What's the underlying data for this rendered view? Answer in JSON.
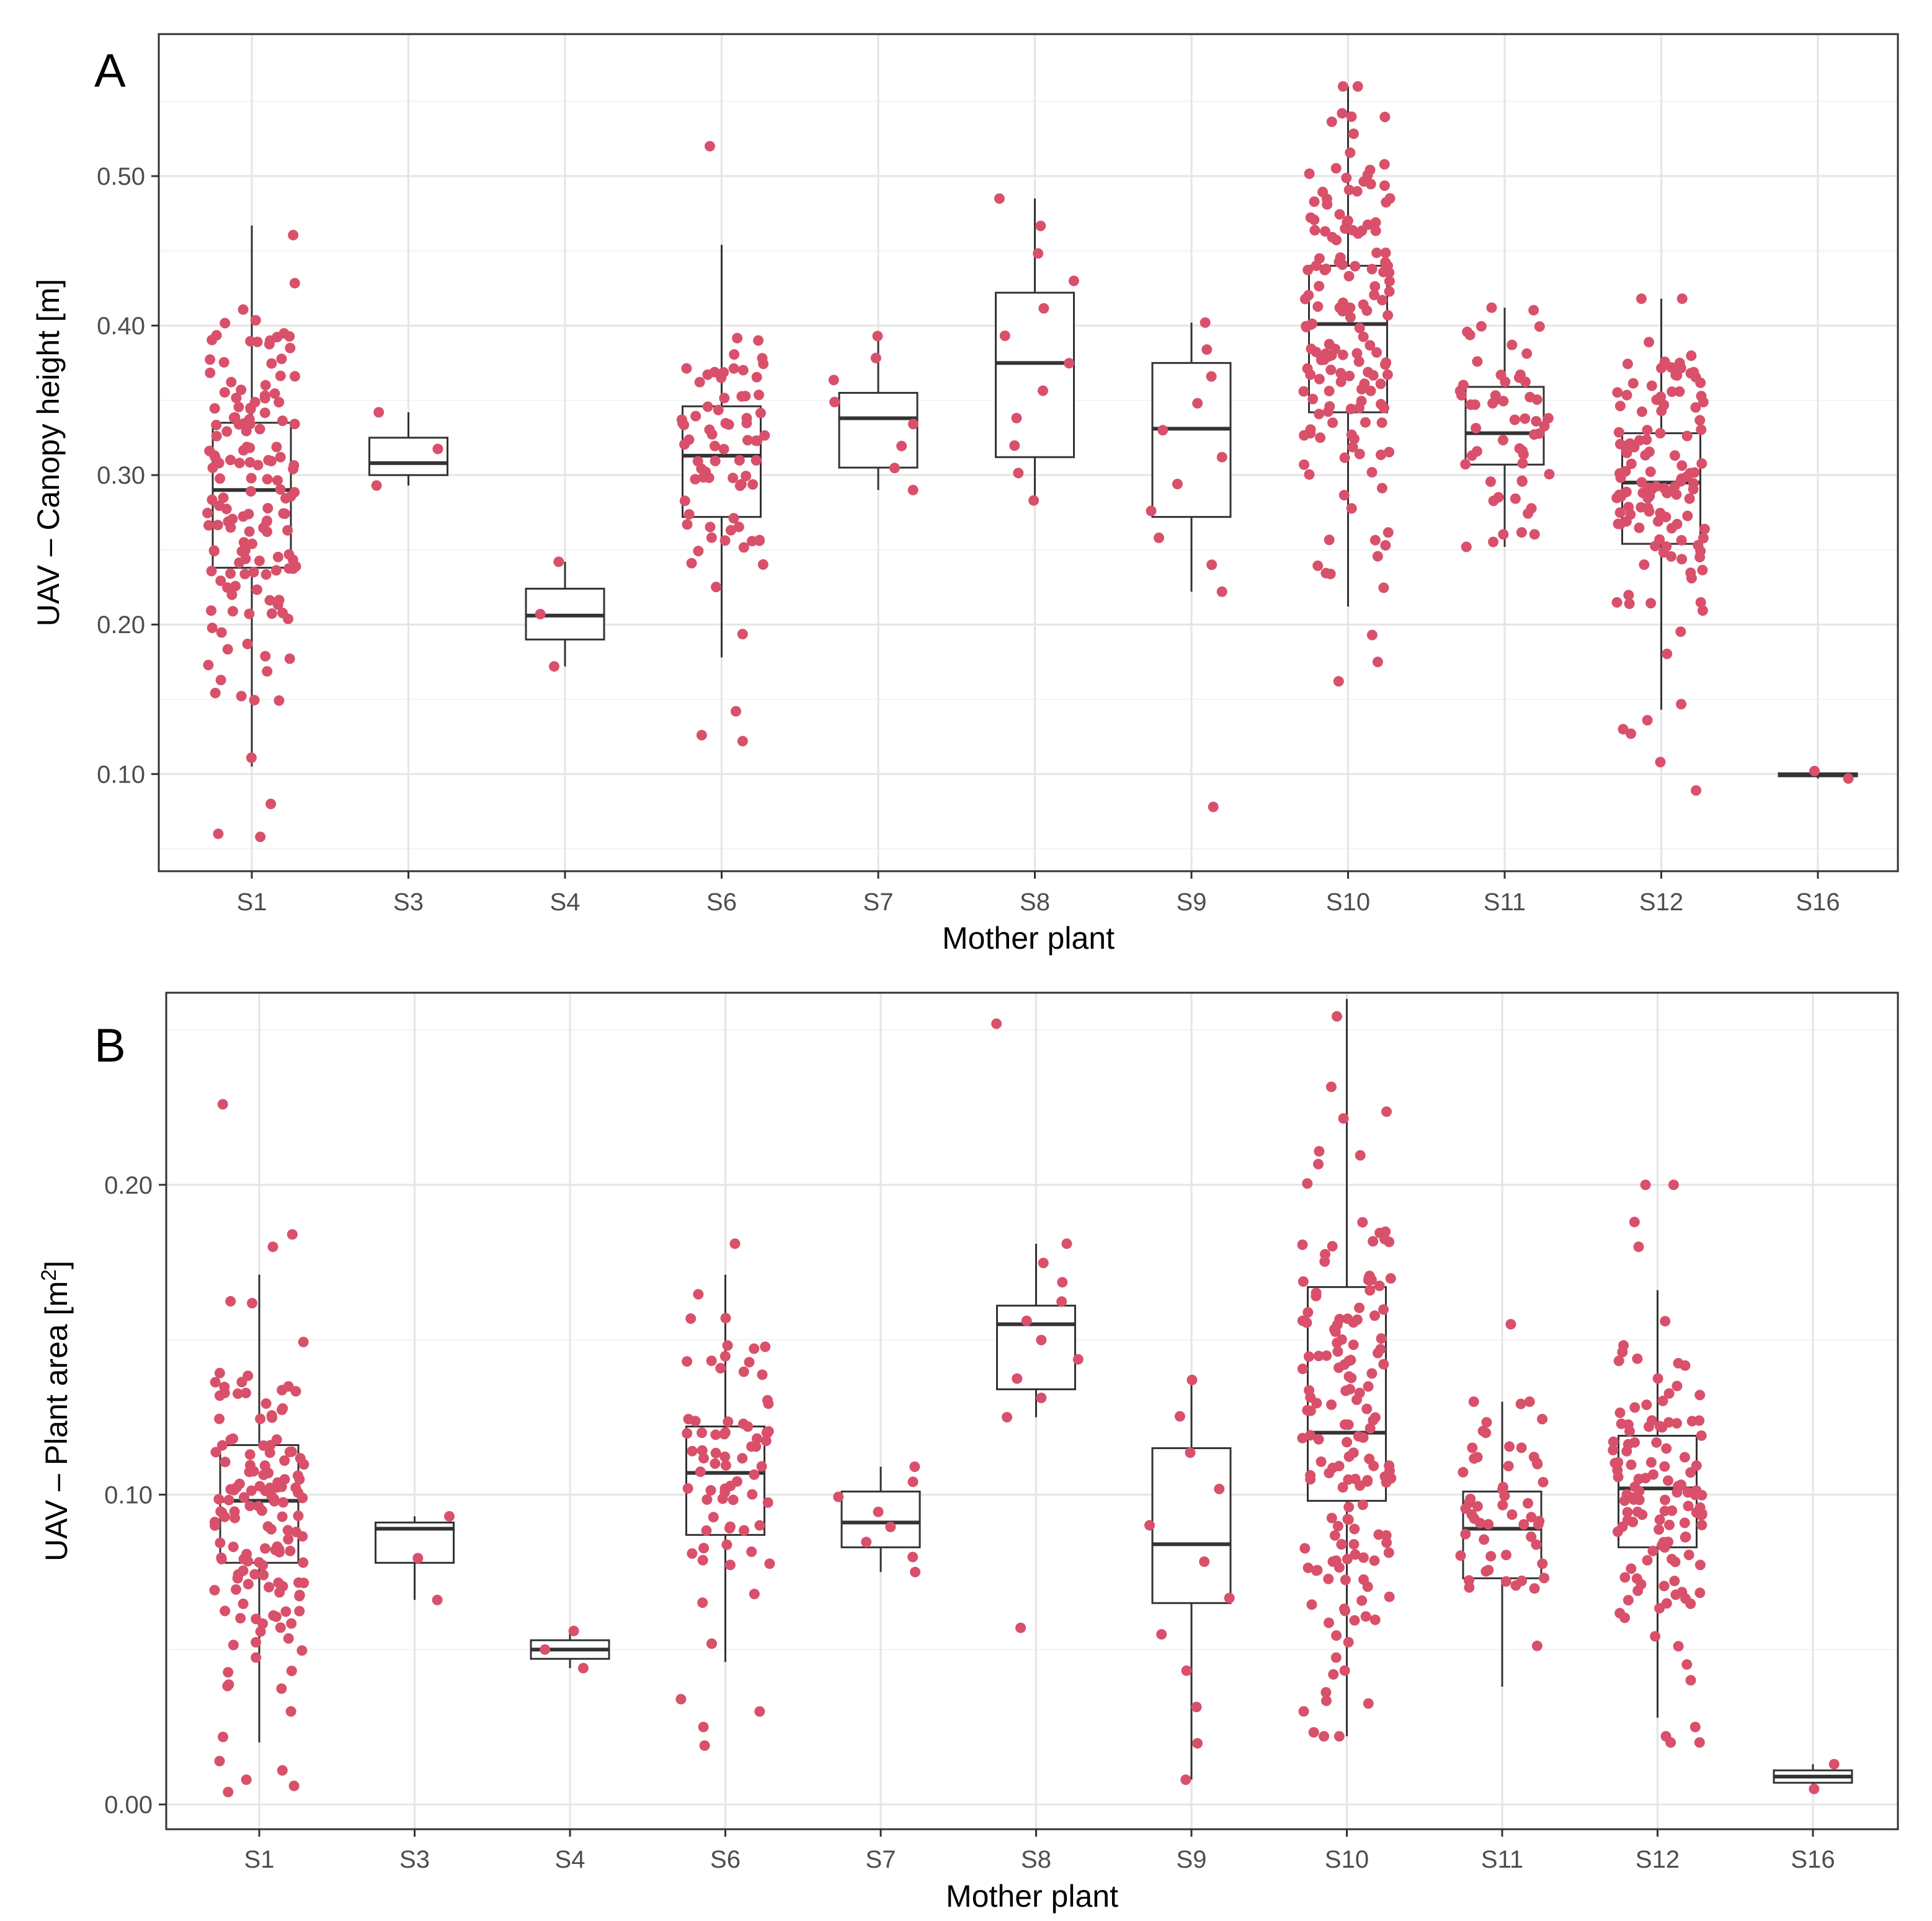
{
  "colors": {
    "point": "#d9506b",
    "box_line": "#333333",
    "grid": "#e6e6e6",
    "panel_border": "#333333"
  },
  "chart_data": [
    {
      "type": "box",
      "tag": "A",
      "xlabel": "Mother plant",
      "ylabel": "UAV – Canopy height [m]",
      "ylabel_sup": "",
      "categories": [
        "S1",
        "S3",
        "S4",
        "S6",
        "S7",
        "S8",
        "S9",
        "S10",
        "S11",
        "S12",
        "S16"
      ],
      "ylim": [
        0.035,
        0.595
      ],
      "yticks": [
        0.1,
        0.2,
        0.3,
        0.4,
        0.5
      ],
      "ytick_labels": [
        "0.10",
        "0.20",
        "0.30",
        "0.40",
        "0.50"
      ],
      "grid": true,
      "boxes": [
        {
          "category": "S1",
          "whisker_low": 0.105,
          "q1": 0.238,
          "median": 0.29,
          "q3": 0.335,
          "whisker_high": 0.467,
          "n": 150,
          "outliers": [
            0.06,
            0.058,
            0.08
          ]
        },
        {
          "category": "S3",
          "whisker_low": 0.293,
          "q1": 0.3,
          "median": 0.308,
          "q3": 0.325,
          "whisker_high": 0.342,
          "n": 3,
          "outliers": []
        },
        {
          "category": "S4",
          "whisker_low": 0.172,
          "q1": 0.19,
          "median": 0.206,
          "q3": 0.224,
          "whisker_high": 0.242,
          "n": 3,
          "outliers": []
        },
        {
          "category": "S6",
          "whisker_low": 0.178,
          "q1": 0.272,
          "median": 0.313,
          "q3": 0.346,
          "whisker_high": 0.454,
          "n": 75,
          "outliers": [
            0.52,
            0.142,
            0.126,
            0.122
          ]
        },
        {
          "category": "S7",
          "whisker_low": 0.29,
          "q1": 0.305,
          "median": 0.338,
          "q3": 0.355,
          "whisker_high": 0.393,
          "n": 8,
          "outliers": []
        },
        {
          "category": "S8",
          "whisker_low": 0.283,
          "q1": 0.312,
          "median": 0.375,
          "q3": 0.422,
          "whisker_high": 0.485,
          "n": 12,
          "outliers": []
        },
        {
          "category": "S9",
          "whisker_low": 0.222,
          "q1": 0.272,
          "median": 0.331,
          "q3": 0.375,
          "whisker_high": 0.402,
          "n": 12,
          "outliers": [
            0.078
          ]
        },
        {
          "category": "S10",
          "whisker_low": 0.212,
          "q1": 0.342,
          "median": 0.401,
          "q3": 0.44,
          "whisker_high": 0.56,
          "n": 155,
          "outliers": [
            0.193,
            0.175,
            0.162
          ]
        },
        {
          "category": "S11",
          "whisker_low": 0.252,
          "q1": 0.307,
          "median": 0.328,
          "q3": 0.359,
          "whisker_high": 0.412,
          "n": 55,
          "outliers": []
        },
        {
          "category": "S12",
          "whisker_low": 0.143,
          "q1": 0.254,
          "median": 0.295,
          "q3": 0.328,
          "whisker_high": 0.418,
          "n": 125,
          "outliers": [
            0.136,
            0.13,
            0.127,
            0.108,
            0.089
          ]
        },
        {
          "category": "S16",
          "whisker_low": 0.097,
          "q1": 0.0985,
          "median": 0.0995,
          "q3": 0.1005,
          "whisker_high": 0.102,
          "n": 2,
          "outliers": []
        }
      ]
    },
    {
      "type": "box",
      "tag": "B",
      "xlabel": "Mother plant",
      "ylabel": "UAV – Plant area [m",
      "ylabel_sup": "2",
      "ylabel_tail": "]",
      "categories": [
        "S1",
        "S3",
        "S4",
        "S6",
        "S7",
        "S8",
        "S9",
        "S10",
        "S11",
        "S12",
        "S16"
      ],
      "ylim": [
        -0.008,
        0.262
      ],
      "yticks": [
        0.0,
        0.1,
        0.2
      ],
      "ytick_labels": [
        "0.00",
        "0.10",
        "0.20"
      ],
      "grid": true,
      "boxes": [
        {
          "category": "S1",
          "whisker_low": 0.02,
          "q1": 0.078,
          "median": 0.098,
          "q3": 0.116,
          "whisker_high": 0.171,
          "n": 150,
          "outliers": [
            0.226,
            0.184,
            0.18,
            0.014,
            0.011,
            0.008,
            0.006,
            0.004
          ]
        },
        {
          "category": "S3",
          "whisker_low": 0.066,
          "q1": 0.078,
          "median": 0.089,
          "q3": 0.091,
          "whisker_high": 0.093,
          "n": 3,
          "outliers": []
        },
        {
          "category": "S4",
          "whisker_low": 0.044,
          "q1": 0.047,
          "median": 0.05,
          "q3": 0.053,
          "whisker_high": 0.056,
          "n": 3,
          "outliers": []
        },
        {
          "category": "S6",
          "whisker_low": 0.046,
          "q1": 0.087,
          "median": 0.107,
          "q3": 0.122,
          "whisker_high": 0.171,
          "n": 75,
          "outliers": [
            0.181,
            0.034,
            0.03,
            0.025,
            0.019
          ]
        },
        {
          "category": "S7",
          "whisker_low": 0.075,
          "q1": 0.083,
          "median": 0.091,
          "q3": 0.101,
          "whisker_high": 0.109,
          "n": 8,
          "outliers": []
        },
        {
          "category": "S8",
          "whisker_low": 0.125,
          "q1": 0.134,
          "median": 0.155,
          "q3": 0.161,
          "whisker_high": 0.181,
          "n": 12,
          "outliers": [
            0.252,
            0.057
          ]
        },
        {
          "category": "S9",
          "whisker_low": 0.008,
          "q1": 0.065,
          "median": 0.084,
          "q3": 0.115,
          "whisker_high": 0.137,
          "n": 12,
          "outliers": []
        },
        {
          "category": "S10",
          "whisker_low": 0.022,
          "q1": 0.098,
          "median": 0.12,
          "q3": 0.167,
          "whisker_high": 0.26,
          "n": 155,
          "outliers": []
        },
        {
          "category": "S11",
          "whisker_low": 0.038,
          "q1": 0.073,
          "median": 0.089,
          "q3": 0.101,
          "whisker_high": 0.13,
          "n": 55,
          "outliers": [
            0.155
          ]
        },
        {
          "category": "S12",
          "whisker_low": 0.028,
          "q1": 0.083,
          "median": 0.102,
          "q3": 0.119,
          "whisker_high": 0.166,
          "n": 125,
          "outliers": [
            0.2,
            0.2,
            0.188,
            0.18,
            0.025,
            0.022,
            0.02,
            0.02
          ]
        },
        {
          "category": "S16",
          "whisker_low": 0.005,
          "q1": 0.007,
          "median": 0.009,
          "q3": 0.011,
          "whisker_high": 0.013,
          "n": 2,
          "outliers": []
        }
      ]
    }
  ]
}
